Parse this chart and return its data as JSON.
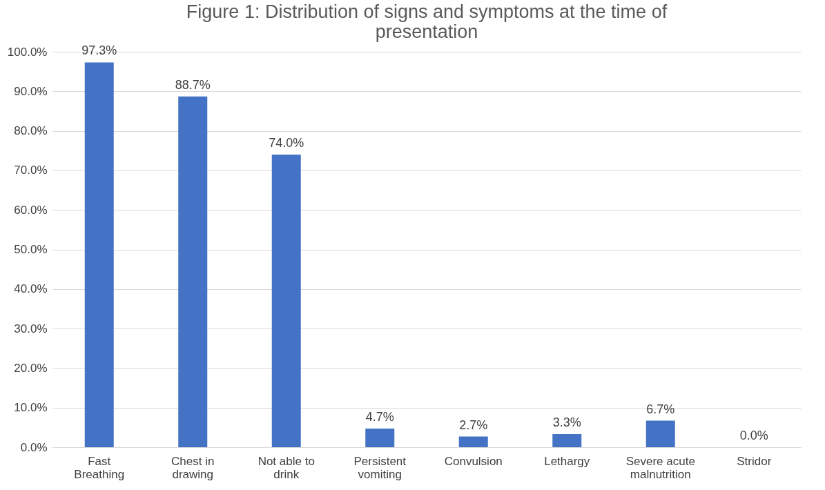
{
  "chart_data": {
    "type": "bar",
    "title": "Figure 1: Distribution of signs and symptoms at the time of presentation",
    "categories": [
      "Fast Breathing",
      "Chest in drawing",
      "Not able to drink",
      "Persistent vomiting",
      "Convulsion",
      "Lethargy",
      "Severe acute malnutrition",
      "Stridor"
    ],
    "values": [
      97.3,
      88.7,
      74.0,
      4.7,
      2.7,
      3.3,
      6.7,
      0.0
    ],
    "value_labels": [
      "97.3%",
      "88.7%",
      "74.0%",
      "4.7%",
      "2.7%",
      "3.3%",
      "6.7%",
      "0.0%"
    ],
    "color": "#4472c4",
    "ylim": [
      0,
      100
    ],
    "yticks": [
      {
        "value": 0,
        "label": "0.0%"
      },
      {
        "value": 10,
        "label": "10.0%"
      },
      {
        "value": 20,
        "label": "20.0%"
      },
      {
        "value": 30,
        "label": "30.0%"
      },
      {
        "value": 40,
        "label": "40.0%"
      },
      {
        "value": 50,
        "label": "50.0%"
      },
      {
        "value": 60,
        "label": "60.0%"
      },
      {
        "value": 70,
        "label": "70.0%"
      },
      {
        "value": 80,
        "label": "80.0%"
      },
      {
        "value": 90,
        "label": "90.0%"
      },
      {
        "value": 100,
        "label": "100.0%"
      }
    ],
    "grid": "y"
  }
}
